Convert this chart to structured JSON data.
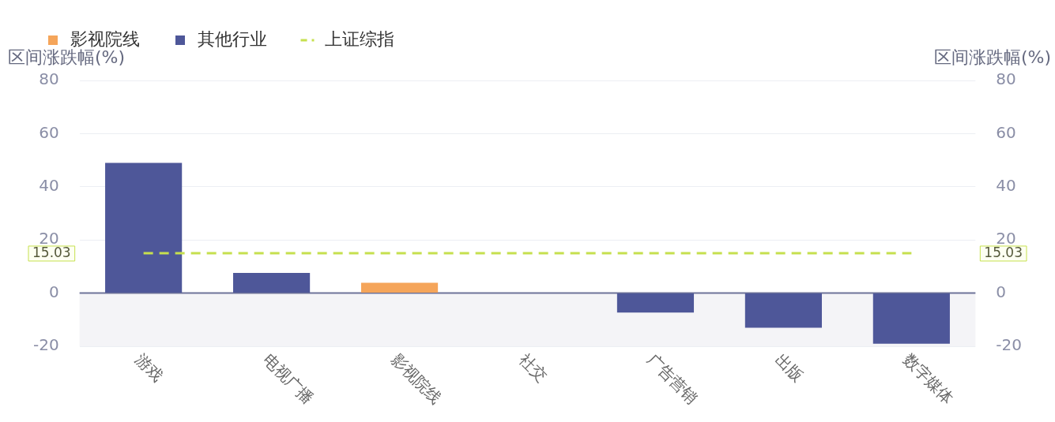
{
  "chart_data": {
    "type": "bar",
    "categories": [
      "游戏",
      "电视广播",
      "影视院线",
      "社交",
      "广告营销",
      "出版",
      "数字媒体"
    ],
    "series": [
      {
        "name": "影视院线",
        "color": "#f5a55a",
        "values": [
          null,
          null,
          3.9,
          null,
          null,
          null,
          null
        ]
      },
      {
        "name": "其他行业",
        "color": "#4e5799",
        "values": [
          49,
          7.6,
          null,
          0,
          -7.3,
          -13,
          -19
        ]
      },
      {
        "name": "上证综指",
        "type": "line",
        "color": "#c6e04e",
        "line_style": "dashed",
        "marker": "none",
        "values": [
          15.03,
          15.03,
          15.03,
          15.03,
          15.03,
          15.03,
          15.03
        ]
      }
    ],
    "ylabel": "区间涨跌幅(%)",
    "y2label": "区间涨跌幅(%)",
    "ylim": [
      -20,
      80
    ],
    "yticks": [
      -20,
      0,
      20,
      40,
      60,
      80
    ],
    "y2lim": [
      -20,
      80
    ],
    "y2ticks": [
      -20,
      0,
      20,
      40,
      60,
      80
    ],
    "bands": [
      {
        "axis": "y",
        "from": -20,
        "to": 0,
        "color": "#f4f4f7"
      }
    ],
    "annotations": [
      "15.03"
    ],
    "ref_lines": [
      {
        "axis": "y",
        "value": 0,
        "color": "#6e7399"
      }
    ],
    "grid": "y",
    "legend": "top left"
  }
}
